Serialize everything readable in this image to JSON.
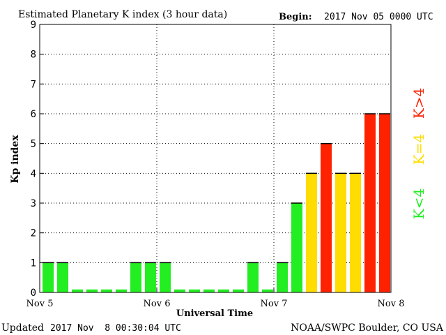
{
  "chart_data": {
    "type": "bar",
    "title": "Estimated Planetary K index (3 hour data)",
    "begin_label": "Begin:",
    "begin_value": "2017 Nov 05 0000 UTC",
    "xlabel": "Universal Time",
    "ylabel": "Kp index",
    "ylim": [
      0,
      9
    ],
    "yticks": [
      "0",
      "1",
      "2",
      "3",
      "4",
      "5",
      "6",
      "7",
      "8",
      "9"
    ],
    "xtick_labels": [
      "Nov 5",
      "Nov 6",
      "Nov 7",
      "Nov 8"
    ],
    "grid": true,
    "bars_per_day": 8,
    "values": [
      1,
      1,
      0,
      0,
      0,
      0,
      1,
      1,
      1,
      0,
      0,
      0,
      0,
      0,
      1,
      0,
      1,
      3,
      4,
      5,
      4,
      4,
      6,
      6
    ],
    "legend": [
      {
        "label": "K<4",
        "color": "#22ee22"
      },
      {
        "label": "K=4",
        "color": "#ffdd00"
      },
      {
        "label": "K>4",
        "color": "#ff2200"
      }
    ],
    "colors": {
      "low": "#22ee22",
      "equal": "#ffdd00",
      "high": "#ff2200"
    }
  },
  "footer": {
    "updated_label": "Updated",
    "updated_value": "2017 Nov  8 00:30:04 UTC",
    "source": "NOAA/SWPC Boulder, CO USA"
  }
}
